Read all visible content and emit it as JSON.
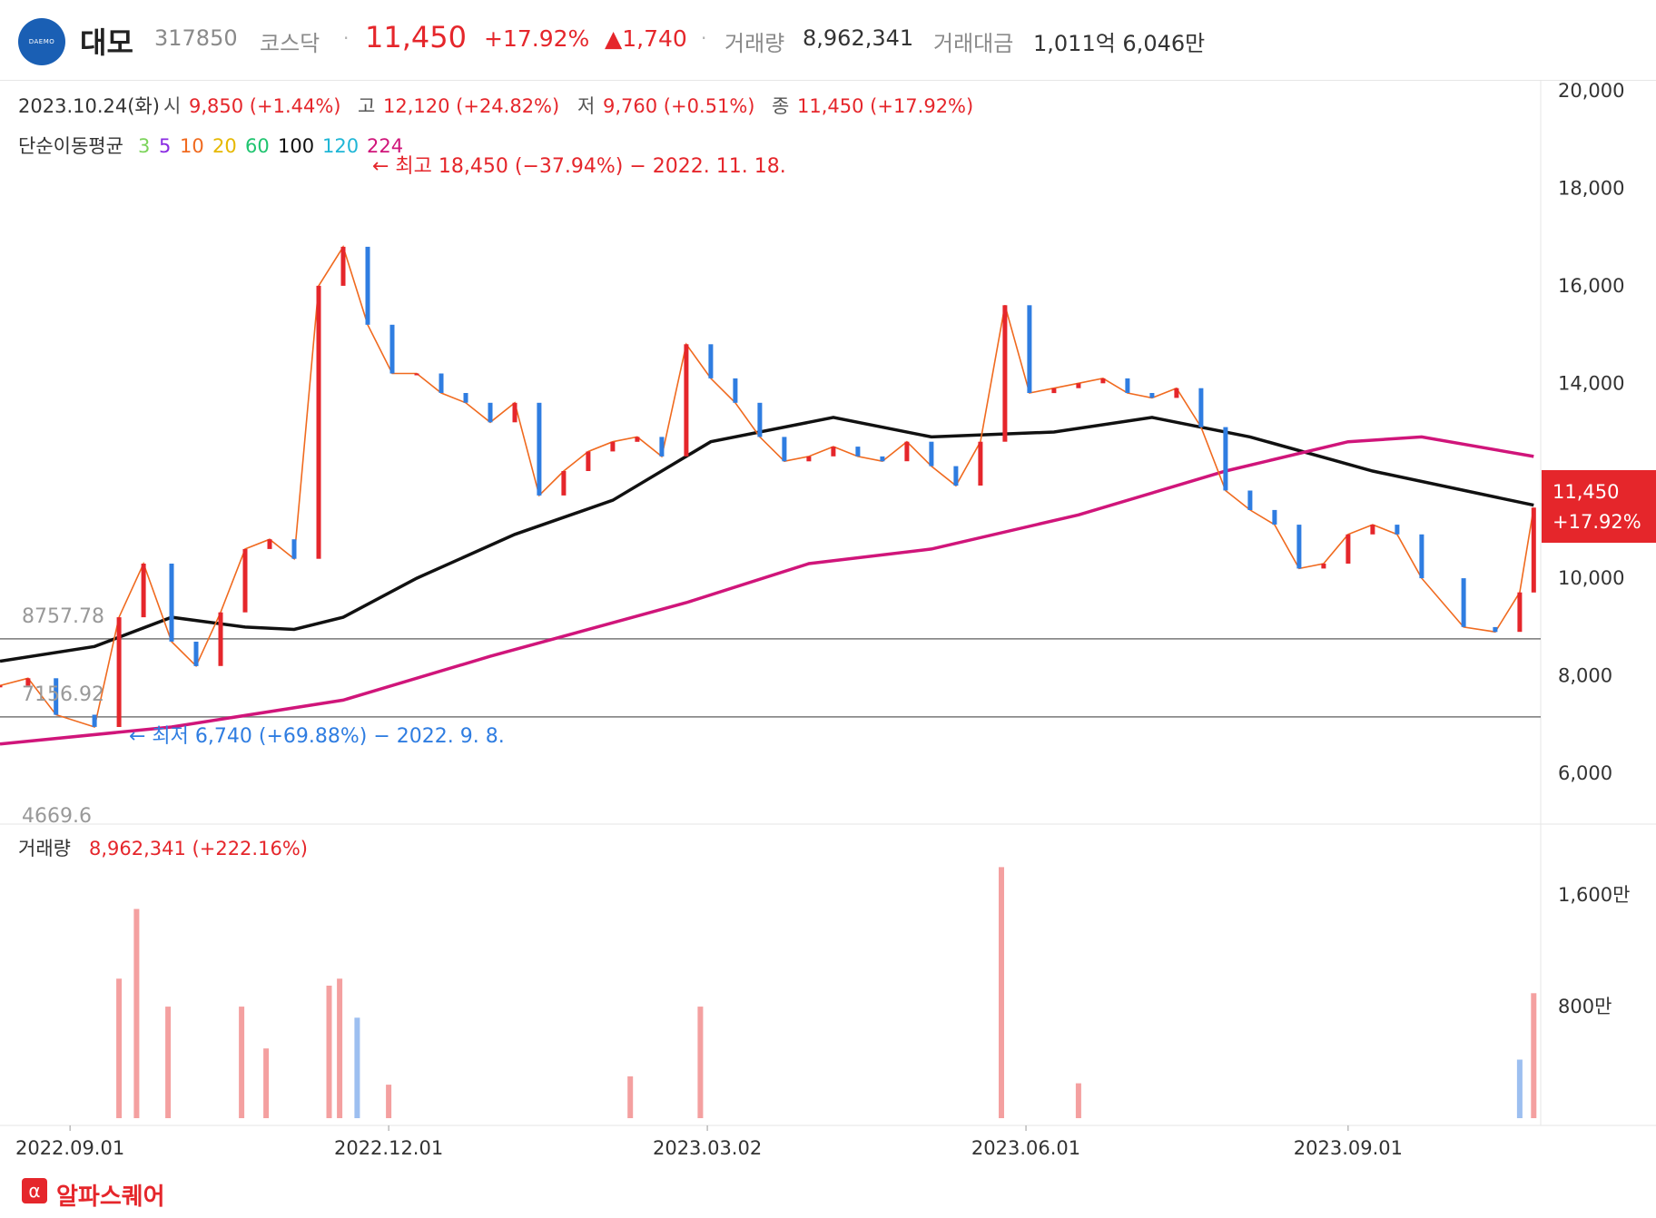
{
  "header": {
    "logo_text": "DAEMO",
    "name": "대모",
    "code": "317850",
    "market": "코스닥",
    "separator": "·",
    "price": "11,450",
    "change_pct": "+17.92%",
    "change_abs": "▲1,740",
    "volume_label": "거래량",
    "volume_value": "8,962,341",
    "amount_label": "거래대금",
    "amount_value": "1,011억 6,046만"
  },
  "ohlc": {
    "date": "2023.10.24(화)",
    "open_label": "시",
    "open_value": "9,850 (+1.44%)",
    "high_label": "고",
    "high_value": "12,120 (+24.82%)",
    "low_label": "저",
    "low_value": "9,760 (+0.51%)",
    "close_label": "종",
    "close_value": "11,450 (+17.92%)"
  },
  "ma_legend": {
    "label": "단순이동평균",
    "items": [
      {
        "text": "3",
        "color": "#7bd35a"
      },
      {
        "text": "5",
        "color": "#8a2be2"
      },
      {
        "text": "10",
        "color": "#f06a1f"
      },
      {
        "text": "20",
        "color": "#e6b800"
      },
      {
        "text": "60",
        "color": "#1fc46f"
      },
      {
        "text": "100",
        "color": "#111111"
      },
      {
        "text": "120",
        "color": "#1fb6d6"
      },
      {
        "text": "224",
        "color": "#d0157a"
      }
    ]
  },
  "annotations": {
    "high": "← 최고 18,450 (−37.94%) − 2022. 11. 18.",
    "low": "← 최저 6,740 (+69.88%) − 2022. 9. 8.",
    "line_upper": "8757.78",
    "line_lower": "7156.92",
    "line_bottom": "4669.6"
  },
  "price_badge": {
    "price": "11,450",
    "pct": "+17.92%"
  },
  "volume_panel": {
    "label": "거래량",
    "value": "8,962,341 (+222.16%)"
  },
  "footer": {
    "icon": "α",
    "brand": "알파스퀘어"
  },
  "colors": {
    "up": "#e5262b",
    "down": "#2f7de1",
    "vol_up": "#f4a0a0",
    "vol_down": "#9dbff0"
  },
  "chart_data": {
    "type": "line",
    "title": "",
    "price_axis": {
      "ylim": [
        4669.6,
        20500
      ],
      "ticks": [
        20000,
        18000,
        16000,
        14000,
        12000,
        10000,
        8000,
        6000
      ],
      "tick_labels": [
        "20,000",
        "18,000",
        "16,000",
        "14,000",
        "",
        "10,000",
        "8,000",
        "6,000"
      ]
    },
    "volume_axis": {
      "ylim": [
        0,
        19000000
      ],
      "ticks": [
        16000000,
        8000000
      ],
      "tick_labels": [
        "1,600만",
        "800만"
      ]
    },
    "x_axis": {
      "tick_labels": [
        "2022.09.01",
        "2022.12.01",
        "2023.03.02",
        "2023.06.01",
        "2023.09.01"
      ]
    },
    "horizontal_lines": [
      8757.78,
      7156.92
    ],
    "close_series": [
      [
        "2022-08-12",
        7800
      ],
      [
        "2022-08-20",
        7950
      ],
      [
        "2022-08-28",
        7200
      ],
      [
        "2022-09-08",
        6950
      ],
      [
        "2022-09-15",
        9200
      ],
      [
        "2022-09-22",
        10300
      ],
      [
        "2022-09-30",
        8700
      ],
      [
        "2022-10-07",
        8200
      ],
      [
        "2022-10-14",
        9300
      ],
      [
        "2022-10-21",
        10600
      ],
      [
        "2022-10-28",
        10800
      ],
      [
        "2022-11-04",
        10400
      ],
      [
        "2022-11-11",
        16000
      ],
      [
        "2022-11-18",
        16800
      ],
      [
        "2022-11-25",
        15200
      ],
      [
        "2022-12-02",
        14200
      ],
      [
        "2022-12-09",
        14200
      ],
      [
        "2022-12-16",
        13800
      ],
      [
        "2022-12-23",
        13600
      ],
      [
        "2022-12-30",
        13200
      ],
      [
        "2023-01-06",
        13600
      ],
      [
        "2023-01-13",
        11700
      ],
      [
        "2023-01-20",
        12200
      ],
      [
        "2023-01-27",
        12600
      ],
      [
        "2023-02-03",
        12800
      ],
      [
        "2023-02-10",
        12900
      ],
      [
        "2023-02-17",
        12500
      ],
      [
        "2023-02-24",
        14800
      ],
      [
        "2023-03-03",
        14100
      ],
      [
        "2023-03-10",
        13600
      ],
      [
        "2023-03-17",
        12900
      ],
      [
        "2023-03-24",
        12400
      ],
      [
        "2023-03-31",
        12500
      ],
      [
        "2023-04-07",
        12700
      ],
      [
        "2023-04-14",
        12500
      ],
      [
        "2023-04-21",
        12400
      ],
      [
        "2023-04-28",
        12800
      ],
      [
        "2023-05-05",
        12300
      ],
      [
        "2023-05-12",
        11900
      ],
      [
        "2023-05-19",
        12800
      ],
      [
        "2023-05-26",
        15600
      ],
      [
        "2023-06-02",
        13800
      ],
      [
        "2023-06-09",
        13900
      ],
      [
        "2023-06-16",
        14000
      ],
      [
        "2023-06-23",
        14100
      ],
      [
        "2023-06-30",
        13800
      ],
      [
        "2023-07-07",
        13700
      ],
      [
        "2023-07-14",
        13900
      ],
      [
        "2023-07-21",
        13100
      ],
      [
        "2023-07-28",
        11800
      ],
      [
        "2023-08-04",
        11400
      ],
      [
        "2023-08-11",
        11100
      ],
      [
        "2023-08-18",
        10200
      ],
      [
        "2023-08-25",
        10300
      ],
      [
        "2023-09-01",
        10900
      ],
      [
        "2023-09-08",
        11100
      ],
      [
        "2023-09-15",
        10900
      ],
      [
        "2023-09-22",
        10000
      ],
      [
        "2023-10-04",
        9000
      ],
      [
        "2023-10-13",
        8900
      ],
      [
        "2023-10-20",
        9710
      ],
      [
        "2023-10-24",
        11450
      ]
    ],
    "ma_series": [
      {
        "name": "100",
        "values": [
          [
            "2022-08-12",
            8300
          ],
          [
            "2022-09-08",
            8600
          ],
          [
            "2022-09-30",
            9200
          ],
          [
            "2022-10-21",
            9000
          ],
          [
            "2022-11-04",
            8950
          ],
          [
            "2022-11-18",
            9200
          ],
          [
            "2022-12-09",
            10000
          ],
          [
            "2023-01-06",
            10900
          ],
          [
            "2023-02-03",
            11600
          ],
          [
            "2023-03-03",
            12800
          ],
          [
            "2023-04-07",
            13300
          ],
          [
            "2023-05-05",
            12900
          ],
          [
            "2023-06-09",
            13000
          ],
          [
            "2023-07-07",
            13300
          ],
          [
            "2023-08-04",
            12900
          ],
          [
            "2023-09-08",
            12200
          ],
          [
            "2023-10-24",
            11500
          ]
        ]
      },
      {
        "name": "224",
        "values": [
          [
            "2022-08-12",
            6600
          ],
          [
            "2022-09-30",
            6950
          ],
          [
            "2022-11-18",
            7500
          ],
          [
            "2022-12-30",
            8400
          ],
          [
            "2023-02-24",
            9500
          ],
          [
            "2023-03-31",
            10300
          ],
          [
            "2023-05-05",
            10600
          ],
          [
            "2023-06-16",
            11300
          ],
          [
            "2023-07-28",
            12200
          ],
          [
            "2023-09-01",
            12800
          ],
          [
            "2023-09-22",
            12900
          ],
          [
            "2023-10-24",
            12500
          ]
        ]
      }
    ],
    "volume_bars": [
      [
        "2022-09-15",
        10000000,
        "up"
      ],
      [
        "2022-09-20",
        15000000,
        "up"
      ],
      [
        "2022-09-29",
        8000000,
        "up"
      ],
      [
        "2022-10-20",
        8000000,
        "up"
      ],
      [
        "2022-10-27",
        5000000,
        "up"
      ],
      [
        "2022-11-14",
        9500000,
        "up"
      ],
      [
        "2022-11-17",
        10000000,
        "up"
      ],
      [
        "2022-11-22",
        7200000,
        "down"
      ],
      [
        "2022-12-01",
        2400000,
        "up"
      ],
      [
        "2023-02-08",
        3000000,
        "up"
      ],
      [
        "2023-02-28",
        8000000,
        "up"
      ],
      [
        "2023-05-25",
        18000000,
        "up"
      ],
      [
        "2023-06-16",
        2500000,
        "up"
      ],
      [
        "2023-10-20",
        4200000,
        "down"
      ],
      [
        "2023-10-24",
        8962341,
        "up"
      ]
    ]
  }
}
